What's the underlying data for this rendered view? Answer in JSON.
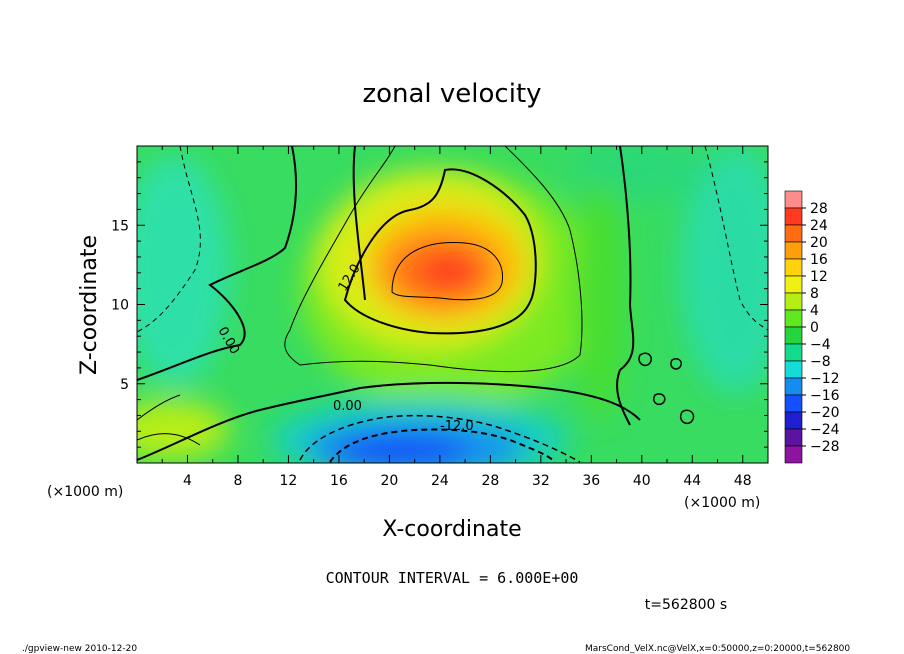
{
  "chart_data": {
    "type": "heatmap",
    "title": "zonal velocity",
    "xlabel": "X-coordinate",
    "ylabel": "Z-coordinate",
    "x_units": "(×1000 m)",
    "x_units_right": "(×1000 m)",
    "y_units": "(×1000 m)",
    "xlim": [
      0,
      50
    ],
    "ylim": [
      0,
      20
    ],
    "x_ticks": [
      "4",
      "8",
      "12",
      "16",
      "20",
      "24",
      "28",
      "32",
      "36",
      "40",
      "44",
      "48"
    ],
    "y_ticks": [
      "5",
      "10",
      "15"
    ],
    "colorbar": {
      "levels": [
        "28",
        "24",
        "20",
        "16",
        "12",
        "8",
        "4",
        "0",
        "−4",
        "−8",
        "−12",
        "−16",
        "−20",
        "−24",
        "−28"
      ],
      "colors": [
        "#ff8c8c",
        "#ff3a1e",
        "#ff6a12",
        "#ff9e0c",
        "#ffd20e",
        "#f0f014",
        "#b4ee14",
        "#5fe81e",
        "#22d63c",
        "#12dc8c",
        "#14dcd8",
        "#148cf0",
        "#1450ff",
        "#1e1ed2",
        "#5a14a0",
        "#8c14a0"
      ]
    },
    "contour_labels": [
      "12.0",
      "0.00",
      "0.00",
      "-12.0"
    ],
    "contour_interval": "CONTOUR INTERVAL = 6.000E+00",
    "time": "t=562800 s"
  },
  "footer": {
    "left": "./gpview-new  2010-12-20",
    "right": "MarsCond_VelX.nc@VelX,x=0:50000,z=0:20000,t=562800"
  }
}
